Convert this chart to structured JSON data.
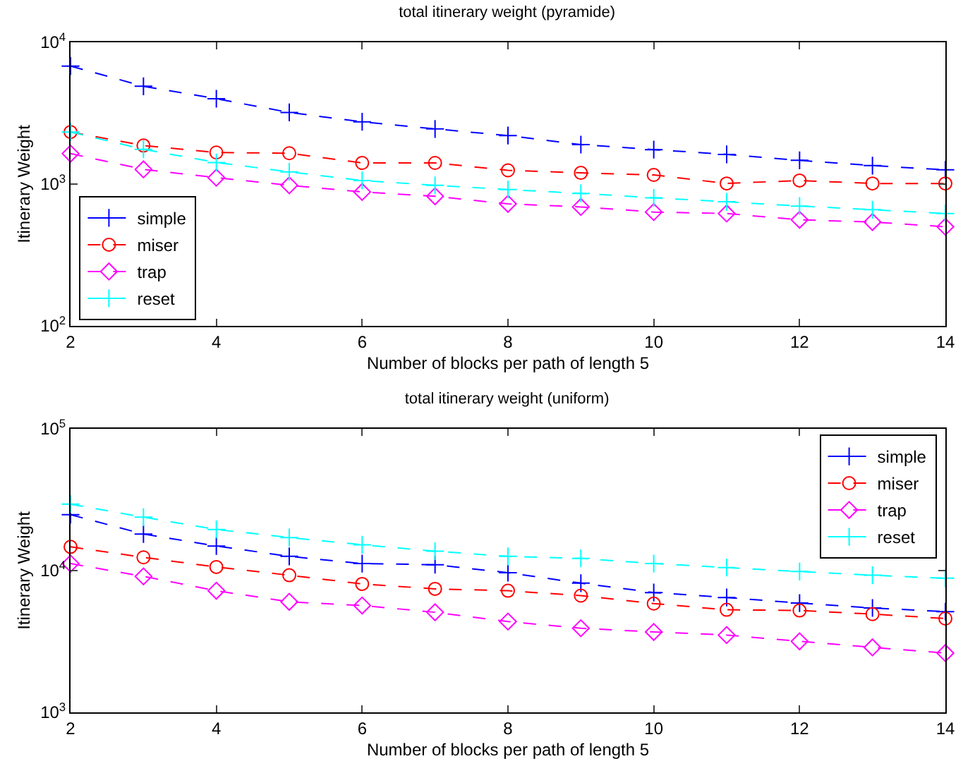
{
  "chart_data": [
    {
      "type": "line",
      "title": "total itinerary weight (pyramide)",
      "xlabel": "Number of blocks per path of length 5",
      "ylabel": "Itinerary Weight",
      "x": [
        2,
        3,
        4,
        5,
        6,
        7,
        8,
        9,
        10,
        11,
        12,
        13,
        14
      ],
      "xlim": [
        2,
        14
      ],
      "xticks": [
        2,
        4,
        6,
        8,
        10,
        12,
        14
      ],
      "log": "y",
      "ylim": [
        100,
        10000
      ],
      "yticks": [
        {
          "value": 100,
          "label": "10$^{2}$"
        },
        {
          "value": 1000,
          "label": "10$^{3}$"
        },
        {
          "value": 10000,
          "label": "10$^{4}$"
        }
      ],
      "grid": false,
      "legend": "bottom left",
      "line_style": "dashed",
      "series": [
        {
          "name": "simple",
          "color": "#0000ff",
          "marker": "cross",
          "values": [
            6800,
            4900,
            4000,
            3200,
            2750,
            2450,
            2200,
            1900,
            1750,
            1620,
            1470,
            1350,
            1260
          ]
        },
        {
          "name": "miser",
          "color": "#ff0000",
          "marker": "circle",
          "values": [
            2330,
            1870,
            1670,
            1650,
            1410,
            1410,
            1250,
            1200,
            1160,
            1010,
            1060,
            1010,
            1010
          ]
        },
        {
          "name": "trap",
          "color": "#ff00ff",
          "marker": "diamond",
          "values": [
            1640,
            1270,
            1110,
            980,
            880,
            820,
            725,
            690,
            635,
            620,
            560,
            540,
            500
          ]
        },
        {
          "name": "reset",
          "color": "#00ffff",
          "marker": "cross",
          "values": [
            2330,
            1760,
            1420,
            1220,
            1060,
            980,
            915,
            860,
            800,
            750,
            700,
            660,
            620
          ]
        }
      ]
    },
    {
      "type": "line",
      "title": "total itinerary weight (uniform)",
      "xlabel": "Number of blocks per path of length 5",
      "ylabel": "Itinerary Weight",
      "x": [
        2,
        3,
        4,
        5,
        6,
        7,
        8,
        9,
        10,
        11,
        12,
        13,
        14
      ],
      "xlim": [
        2,
        14
      ],
      "xticks": [
        2,
        4,
        6,
        8,
        10,
        12,
        14
      ],
      "log": "y",
      "ylim": [
        1000,
        100000
      ],
      "yticks": [
        {
          "value": 1000,
          "label": "10$^{3}$"
        },
        {
          "value": 10000,
          "label": "10$^{4}$"
        },
        {
          "value": 100000,
          "label": "10$^{5}$"
        }
      ],
      "grid": false,
      "legend": "top right",
      "line_style": "dashed",
      "series": [
        {
          "name": "simple",
          "color": "#0000ff",
          "marker": "cross",
          "values": [
            24800,
            18100,
            14900,
            12600,
            11200,
            11000,
            9660,
            8150,
            7000,
            6460,
            5900,
            5450,
            5130
          ]
        },
        {
          "name": "miser",
          "color": "#ff0000",
          "marker": "circle",
          "values": [
            14700,
            12400,
            10600,
            9270,
            8050,
            7430,
            7210,
            6660,
            5850,
            5290,
            5230,
            4930,
            4590
          ]
        },
        {
          "name": "trap",
          "color": "#ff00ff",
          "marker": "diamond",
          "values": [
            11200,
            9100,
            7210,
            6020,
            5670,
            5080,
            4370,
            3920,
            3690,
            3510,
            3170,
            2870,
            2620
          ]
        },
        {
          "name": "reset",
          "color": "#00ffff",
          "marker": "cross",
          "values": [
            29400,
            23800,
            19500,
            17100,
            15200,
            13700,
            12600,
            12200,
            11200,
            10500,
            9850,
            9270,
            8830
          ]
        }
      ]
    }
  ]
}
